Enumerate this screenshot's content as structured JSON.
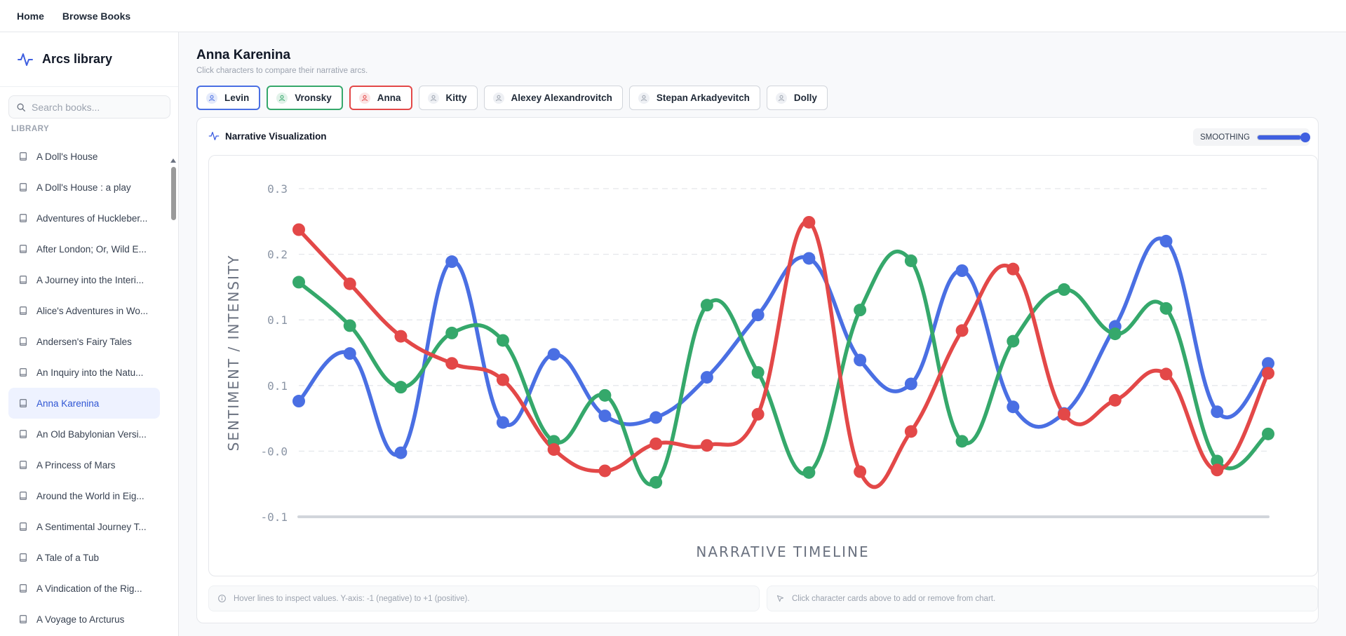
{
  "nav": {
    "home": "Home",
    "browse": "Browse Books"
  },
  "sidebar": {
    "brand": "Arcs library",
    "search_placeholder": "Search books...",
    "section_label": "LIBRARY",
    "books": [
      "A Doll's House",
      "A Doll's House : a play",
      "Adventures of Huckleber...",
      "After London; Or, Wild E...",
      "A Journey into the Interi...",
      "Alice's Adventures in Wo...",
      "Andersen's Fairy Tales",
      "An Inquiry into the Natu...",
      "Anna Karenina",
      "An Old Babylonian Versi...",
      "A Princess of Mars",
      "Around the World in Eig...",
      "A Sentimental Journey T...",
      "A Tale of a Tub",
      "A Vindication of the Rig...",
      "A Voyage to Arcturus"
    ],
    "active_book": "Anna Karenina"
  },
  "main": {
    "title": "Anna Karenina",
    "subtitle": "Click characters to compare their narrative arcs.",
    "characters": [
      {
        "name": "Levin",
        "selected": true,
        "color": "#4a6fe3"
      },
      {
        "name": "Vronsky",
        "selected": true,
        "color": "#35a86b"
      },
      {
        "name": "Anna",
        "selected": true,
        "color": "#e34848"
      },
      {
        "name": "Kitty",
        "selected": false,
        "color": "#9ca3af"
      },
      {
        "name": "Alexey Alexandrovitch",
        "selected": false,
        "color": "#9ca3af"
      },
      {
        "name": "Stepan Arkadyevitch",
        "selected": false,
        "color": "#9ca3af"
      },
      {
        "name": "Dolly",
        "selected": false,
        "color": "#9ca3af"
      }
    ],
    "card_title": "Narrative Visualization",
    "smoothing_label": "SMOOTHING",
    "smoothing_value": 0.85,
    "hint_left": "Hover lines to inspect values. Y-axis: -1 (negative) to +1 (positive).",
    "hint_right": "Click character cards above to add or remove from chart."
  },
  "chart_data": {
    "type": "line",
    "xlabel": "NARRATIVE TIMELINE",
    "ylabel": "SENTIMENT / INTENSITY",
    "yticks": [
      "0.3",
      "0.2",
      "0.1",
      "0.1",
      "-0.0",
      "-0.1"
    ],
    "ylim": [
      -0.1,
      0.3
    ],
    "grid": true,
    "x": [
      0,
      1,
      2,
      3,
      4,
      5,
      6,
      7,
      8,
      9,
      10,
      11,
      12,
      13,
      14,
      15,
      16,
      17,
      18,
      19
    ],
    "series": [
      {
        "name": "Levin",
        "color": "#4a6fe3",
        "values": [
          0.041,
          0.099,
          -0.022,
          0.211,
          0.015,
          0.098,
          0.023,
          0.021,
          0.07,
          0.146,
          0.215,
          0.091,
          0.062,
          0.2,
          0.034,
          0.026,
          0.132,
          0.236,
          0.028,
          0.087
        ]
      },
      {
        "name": "Vronsky",
        "color": "#35a86b",
        "values": [
          0.186,
          0.133,
          0.058,
          0.124,
          0.115,
          -0.008,
          0.048,
          -0.058,
          0.158,
          0.076,
          -0.046,
          0.152,
          0.212,
          -0.008,
          0.114,
          0.177,
          0.123,
          0.154,
          -0.032,
          0.001
        ]
      },
      {
        "name": "Anna",
        "color": "#e34848",
        "values": [
          0.25,
          0.184,
          0.12,
          0.087,
          0.067,
          -0.018,
          -0.044,
          -0.011,
          -0.013,
          0.025,
          0.259,
          -0.045,
          0.004,
          0.127,
          0.202,
          0.025,
          0.042,
          0.074,
          -0.043,
          0.075
        ]
      }
    ]
  }
}
